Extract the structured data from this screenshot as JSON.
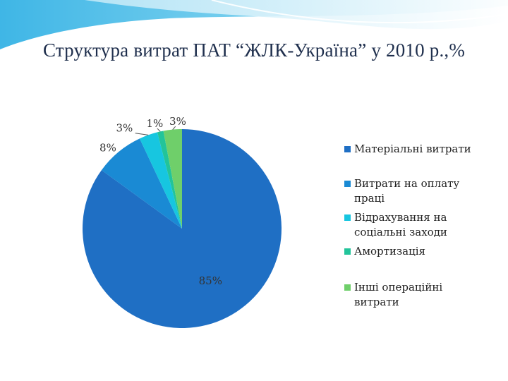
{
  "slide": {
    "title": "Структура витрат ПАТ “ЖЛК-Україна” у 2010 р.,%"
  },
  "chart_data": {
    "type": "pie",
    "title": "Структура витрат ПАТ “ЖЛК-Україна” у 2010 р.,%",
    "categories": [
      "Матеріальні витрати",
      "Витрати на оплату праці",
      "Відрахування на соціальні заходи",
      "Амортизація",
      "Інші операційні витрати"
    ],
    "values": [
      85,
      8,
      3,
      1,
      3
    ],
    "data_labels": [
      "85%",
      "8%",
      "3%",
      "1%",
      "3%"
    ],
    "legend_lines": [
      [
        "Матеріальні витрати"
      ],
      [
        "Витрати на оплату",
        "праці"
      ],
      [
        "Відрахування на",
        "соціальні заходи"
      ],
      [
        "Амортизація"
      ],
      [
        "Інші операційні",
        "витрати"
      ]
    ],
    "colors": [
      "#1f6fc4",
      "#1a8ad4",
      "#17c6e0",
      "#22c49a",
      "#6fcf6a"
    ],
    "legend_position": "right"
  }
}
